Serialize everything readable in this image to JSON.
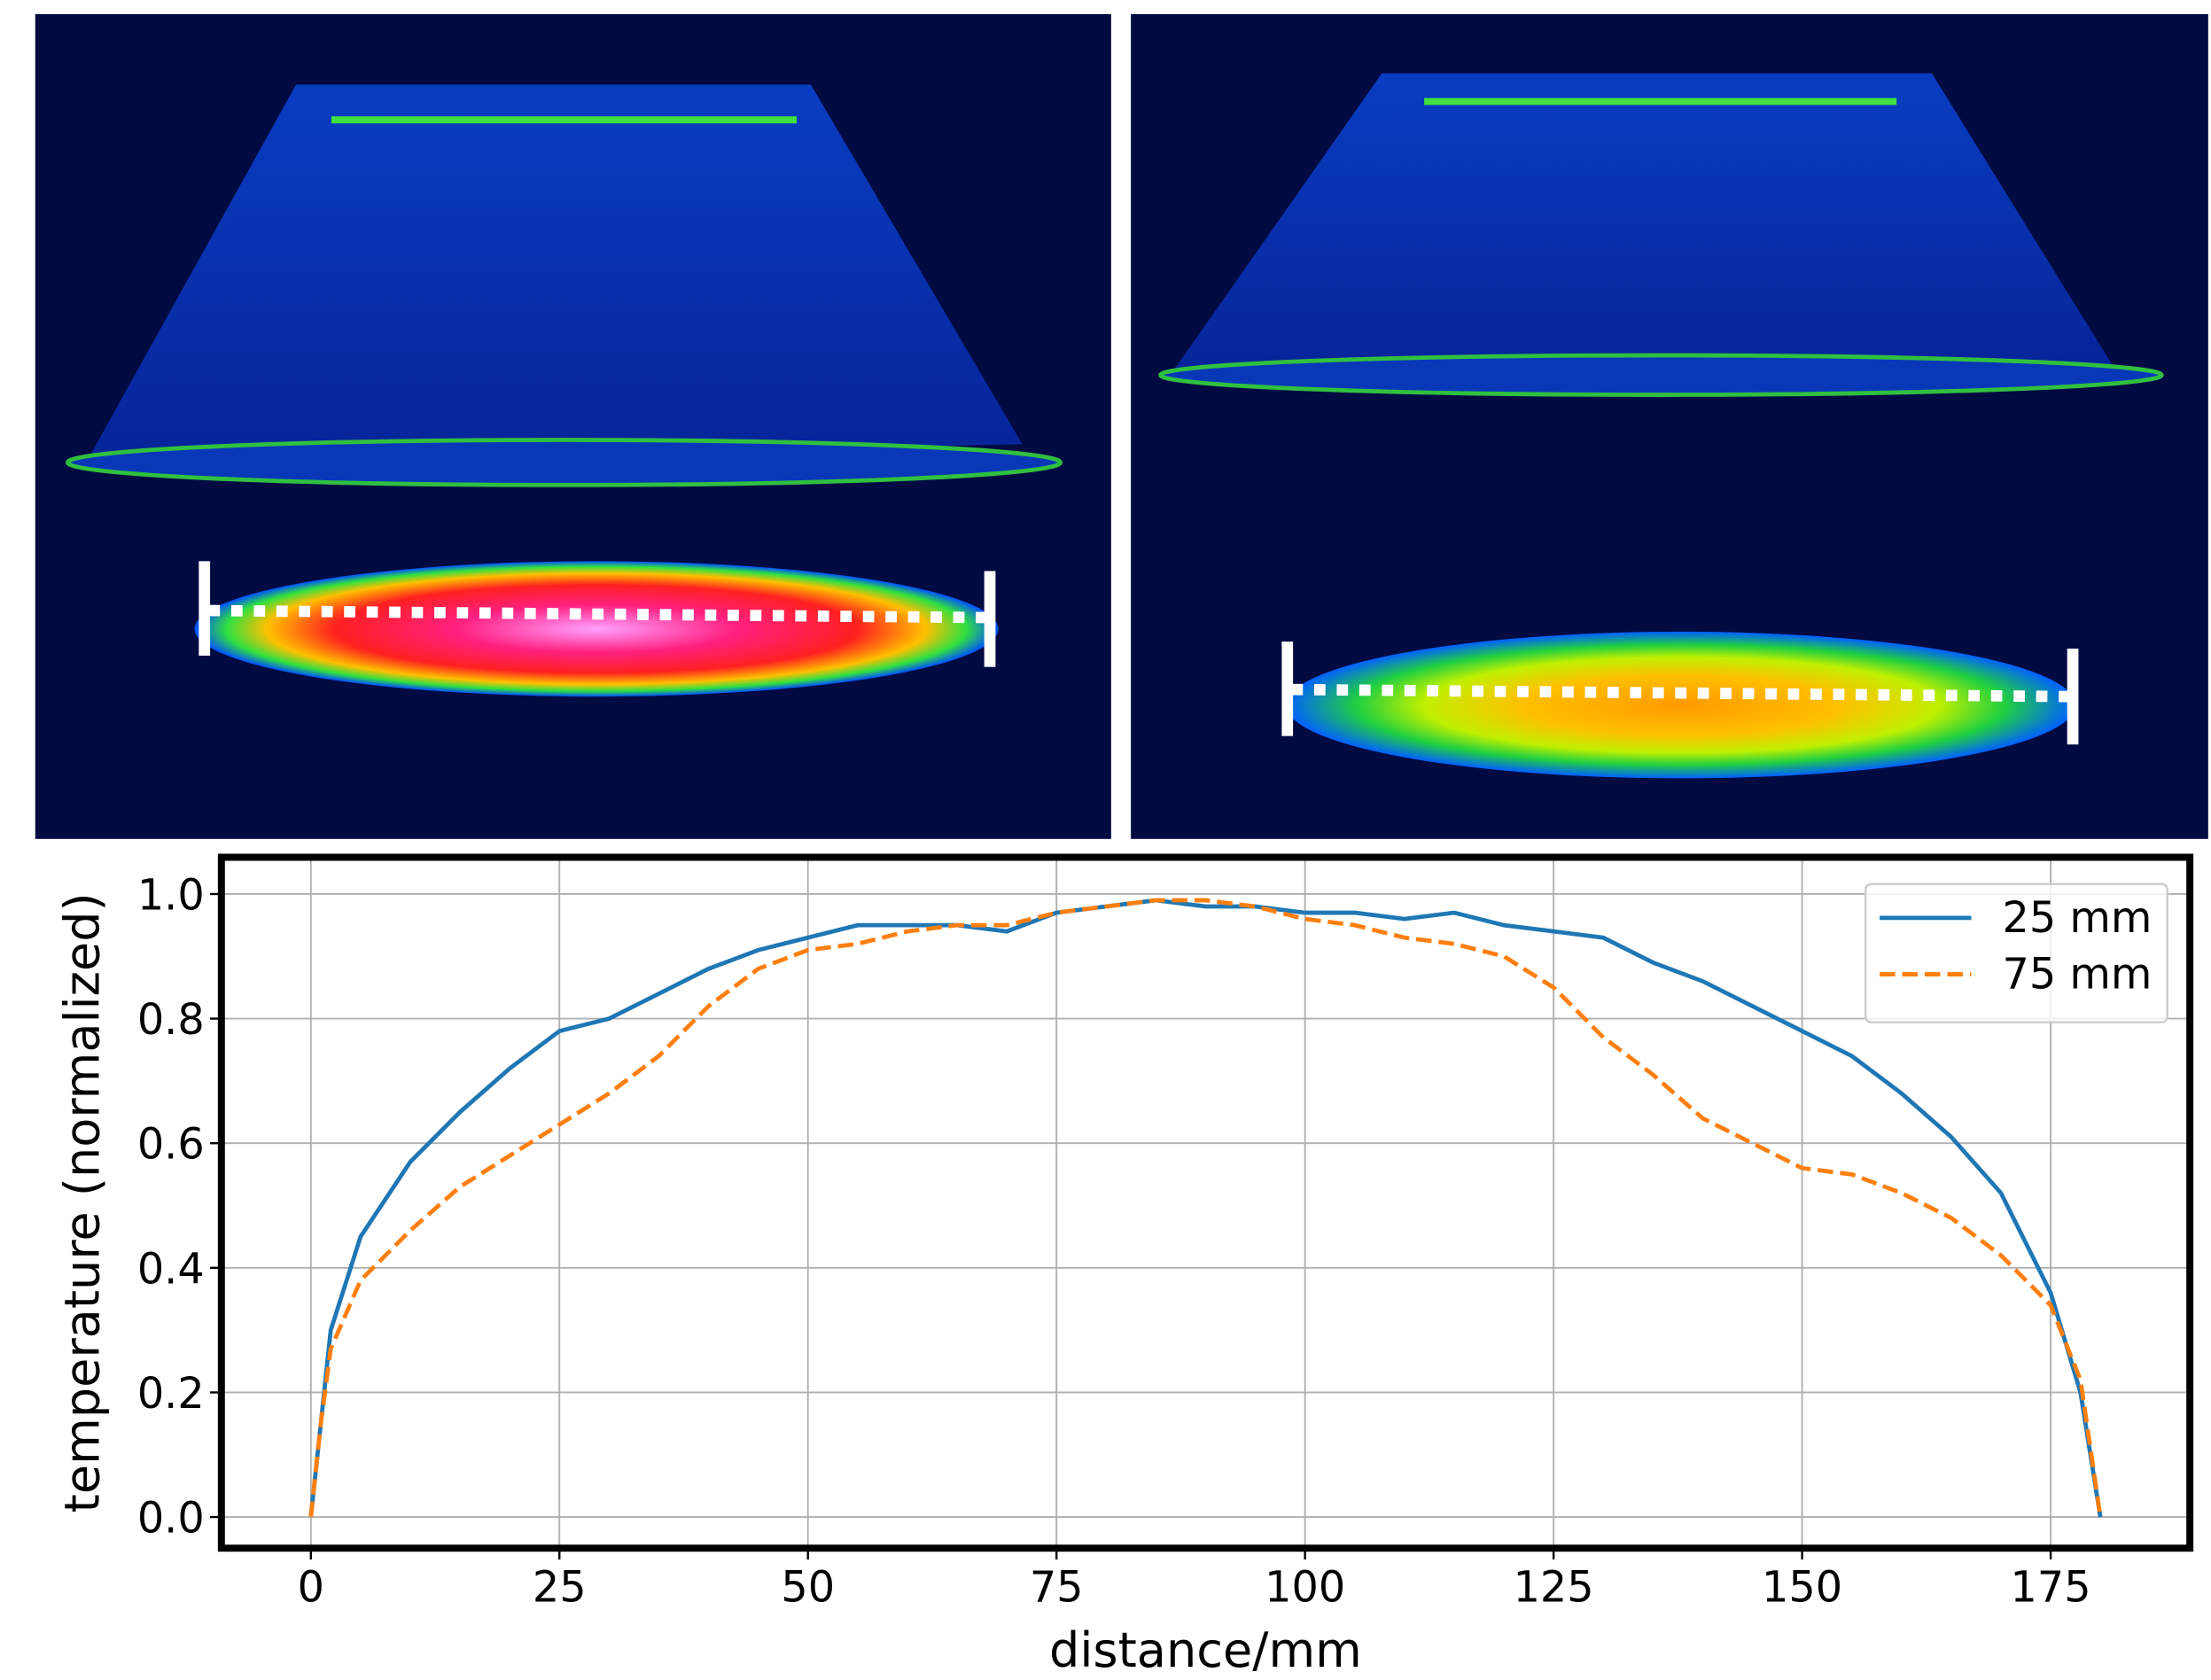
{
  "chart_data": {
    "type": "line",
    "xlabel": "distance/mm",
    "ylabel": "temperature (normalized)",
    "x": [
      0,
      1,
      2,
      5,
      10,
      15,
      20,
      25,
      30,
      35,
      40,
      45,
      50,
      55,
      60,
      65,
      70,
      75,
      80,
      85,
      90,
      95,
      100,
      105,
      110,
      115,
      120,
      125,
      130,
      135,
      140,
      145,
      150,
      155,
      160,
      165,
      170,
      175,
      178,
      180
    ],
    "series": [
      {
        "name": "25 mm",
        "color": "#1f77b4",
        "linestyle": "solid",
        "values": [
          0,
          0.15,
          0.3,
          0.45,
          0.57,
          0.65,
          0.72,
          0.78,
          0.8,
          0.84,
          0.88,
          0.91,
          0.93,
          0.95,
          0.95,
          0.95,
          0.94,
          0.97,
          0.98,
          0.99,
          0.98,
          0.98,
          0.97,
          0.97,
          0.96,
          0.97,
          0.95,
          0.94,
          0.93,
          0.89,
          0.86,
          0.82,
          0.78,
          0.74,
          0.68,
          0.61,
          0.52,
          0.36,
          0.2,
          0
        ]
      },
      {
        "name": "75 mm",
        "color": "#ff7f0e",
        "linestyle": "dashed",
        "values": [
          0,
          0.15,
          0.27,
          0.38,
          0.46,
          0.53,
          0.58,
          0.63,
          0.68,
          0.74,
          0.82,
          0.88,
          0.91,
          0.92,
          0.94,
          0.95,
          0.95,
          0.97,
          0.98,
          0.99,
          0.99,
          0.98,
          0.96,
          0.95,
          0.93,
          0.92,
          0.9,
          0.85,
          0.77,
          0.71,
          0.64,
          0.6,
          0.56,
          0.55,
          0.52,
          0.48,
          0.42,
          0.34,
          0.22,
          0
        ]
      }
    ],
    "xlim": [
      -9,
      189
    ],
    "ylim": [
      -0.05,
      1.059
    ],
    "xticks": [
      0,
      25,
      50,
      75,
      100,
      125,
      150,
      175
    ],
    "yticks": [
      {
        "value": 0,
        "label": "0.0"
      },
      0.2,
      0.4,
      0.6,
      0.8,
      {
        "value": 1,
        "label": "1.0"
      }
    ],
    "grid": true,
    "legend": "upper right"
  }
}
